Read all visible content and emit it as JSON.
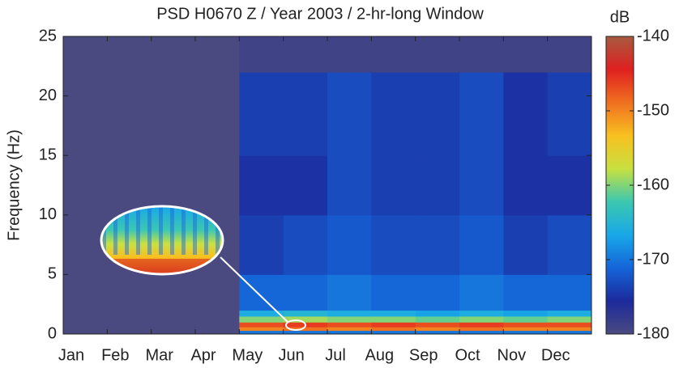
{
  "chart_data": {
    "type": "heatmap",
    "title": "PSD H0670 Z / Year 2003 / 2-hr-long Window",
    "y_label": "Frequency (Hz)",
    "colorbar_label": "dB",
    "categories": [
      "Jan",
      "Feb",
      "Mar",
      "Apr",
      "May",
      "Jun",
      "Jul",
      "Aug",
      "Sep",
      "Oct",
      "Nov",
      "Dec"
    ],
    "y_bins": [
      0,
      0.3,
      0.6,
      1,
      1.5,
      2,
      5,
      10,
      15,
      22,
      25
    ],
    "values": [
      [
        -180,
        -180,
        -180,
        -180,
        -180,
        -180,
        -180,
        -180,
        -180,
        -180
      ],
      [
        -180,
        -180,
        -180,
        -180,
        -180,
        -180,
        -180,
        -180,
        -180,
        -180
      ],
      [
        -180,
        -180,
        -180,
        -180,
        -180,
        -180,
        -180,
        -180,
        -180,
        -180
      ],
      [
        -180,
        -180,
        -180,
        -180,
        -180,
        -180,
        -180,
        -180,
        -180,
        -180
      ],
      [
        -170,
        -150,
        -147,
        -160,
        -166,
        -171,
        -174,
        -175,
        -174,
        -179
      ],
      [
        -170,
        -149,
        -146,
        -159,
        -165,
        -171,
        -173,
        -175,
        -174,
        -179
      ],
      [
        -170,
        -150,
        -147,
        -160,
        -166,
        -170,
        -172,
        -173,
        -173,
        -179
      ],
      [
        -170,
        -149,
        -146,
        -160,
        -166,
        -171,
        -173,
        -174,
        -174,
        -179
      ],
      [
        -170,
        -150,
        -147,
        -161,
        -167,
        -171,
        -173,
        -174,
        -174,
        -179
      ],
      [
        -170,
        -149,
        -146,
        -160,
        -166,
        -170,
        -172,
        -173,
        -173,
        -179
      ],
      [
        -170,
        -150,
        -147,
        -161,
        -167,
        -171,
        -174,
        -175,
        -175,
        -179
      ],
      [
        -170,
        -150,
        -147,
        -160,
        -166,
        -171,
        -173,
        -175,
        -174,
        -179
      ]
    ],
    "ylim": [
      0,
      25
    ],
    "yticks": [
      0,
      5,
      10,
      15,
      20,
      25
    ],
    "clim": [
      -180,
      -140
    ],
    "cticks": [
      -180,
      -170,
      -160,
      -150,
      -140
    ],
    "colormap": [
      "#4a4a80",
      "#1c2a9c",
      "#1565d8",
      "#18a8e8",
      "#3cc8b0",
      "#c8e040",
      "#f8c020",
      "#f07020",
      "#e02020",
      "#a65a40"
    ]
  }
}
